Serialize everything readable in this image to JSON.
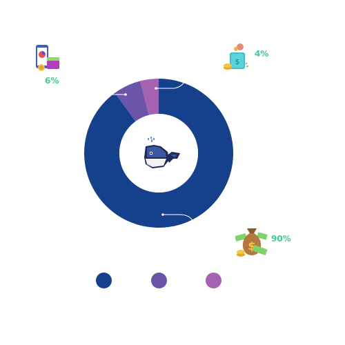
{
  "chart_data": {
    "type": "pie",
    "values": [
      90,
      6,
      4
    ],
    "labels": [
      "90%",
      "6%",
      "4%"
    ],
    "colors": [
      "#15418c",
      "#6a55a8",
      "#a562b0"
    ],
    "icons": [
      "money-bag-icon",
      "phone-wallet-icon",
      "piggy-bank-icon"
    ],
    "center_icon": "whale-icon"
  }
}
